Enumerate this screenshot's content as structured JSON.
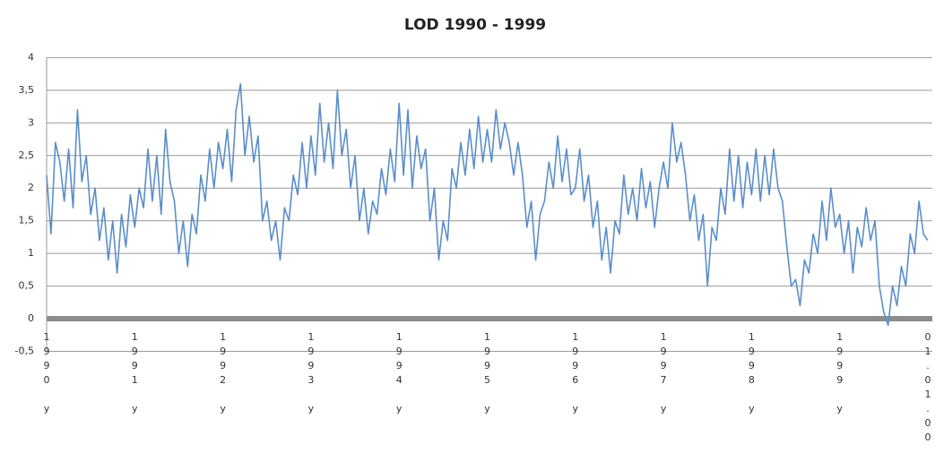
{
  "chart_data": {
    "type": "line",
    "title": "LOD 1990 - 1999",
    "categories": [
      "1990 y",
      null,
      null,
      null,
      null,
      null,
      null,
      null,
      null,
      null,
      null,
      null,
      null,
      null,
      null,
      null,
      null,
      null,
      null,
      null,
      "1991 y",
      null,
      null,
      null,
      null,
      null,
      null,
      null,
      null,
      null,
      null,
      null,
      null,
      null,
      null,
      null,
      null,
      null,
      null,
      null,
      "1992 y",
      null,
      null,
      null,
      null,
      null,
      null,
      null,
      null,
      null,
      null,
      null,
      null,
      null,
      null,
      null,
      null,
      null,
      null,
      null,
      "1993 y",
      null,
      null,
      null,
      null,
      null,
      null,
      null,
      null,
      null,
      null,
      null,
      null,
      null,
      null,
      null,
      null,
      null,
      null,
      null,
      "1994 y",
      null,
      null,
      null,
      null,
      null,
      null,
      null,
      null,
      null,
      null,
      null,
      null,
      null,
      null,
      null,
      null,
      null,
      null,
      null,
      "1995 y",
      null,
      null,
      null,
      null,
      null,
      null,
      null,
      null,
      null,
      null,
      null,
      null,
      null,
      null,
      null,
      null,
      null,
      null,
      null,
      "1996 y",
      null,
      null,
      null,
      null,
      null,
      null,
      null,
      null,
      null,
      null,
      null,
      null,
      null,
      null,
      null,
      null,
      null,
      null,
      null,
      "1997 y",
      null,
      null,
      null,
      null,
      null,
      null,
      null,
      null,
      null,
      null,
      null,
      null,
      null,
      null,
      null,
      null,
      null,
      null,
      null,
      "1998 y",
      null,
      null,
      null,
      null,
      null,
      null,
      null,
      null,
      null,
      null,
      null,
      null,
      null,
      null,
      null,
      null,
      null,
      null,
      null,
      "1999 y",
      null,
      null,
      null,
      null,
      null,
      null,
      null,
      null,
      null,
      null,
      null,
      null,
      null,
      null,
      null,
      null,
      null,
      null,
      null,
      "01.01.00"
    ],
    "values": [
      2.2,
      1.3,
      2.7,
      2.4,
      1.8,
      2.6,
      1.7,
      3.2,
      2.1,
      2.5,
      1.6,
      2.0,
      1.2,
      1.7,
      0.9,
      1.5,
      0.7,
      1.6,
      1.1,
      1.9,
      1.4,
      2.0,
      1.7,
      2.6,
      1.8,
      2.5,
      1.6,
      2.9,
      2.1,
      1.8,
      1.0,
      1.5,
      0.8,
      1.6,
      1.3,
      2.2,
      1.8,
      2.6,
      2.0,
      2.7,
      2.3,
      2.9,
      2.1,
      3.2,
      3.6,
      2.5,
      3.1,
      2.4,
      2.8,
      1.5,
      1.8,
      1.2,
      1.5,
      0.9,
      1.7,
      1.5,
      2.2,
      1.9,
      2.7,
      2.0,
      2.8,
      2.2,
      3.3,
      2.4,
      3.0,
      2.3,
      3.5,
      2.5,
      2.9,
      2.0,
      2.5,
      1.5,
      2.0,
      1.3,
      1.8,
      1.6,
      2.3,
      1.9,
      2.6,
      2.1,
      3.3,
      2.2,
      3.2,
      2.0,
      2.8,
      2.3,
      2.6,
      1.5,
      2.0,
      0.9,
      1.5,
      1.2,
      2.3,
      2.0,
      2.7,
      2.2,
      2.9,
      2.3,
      3.1,
      2.4,
      2.9,
      2.4,
      3.2,
      2.6,
      3.0,
      2.7,
      2.2,
      2.7,
      2.2,
      1.4,
      1.8,
      0.9,
      1.6,
      1.8,
      2.4,
      2.0,
      2.8,
      2.1,
      2.6,
      1.9,
      2.0,
      2.6,
      1.8,
      2.2,
      1.4,
      1.8,
      0.9,
      1.4,
      0.7,
      1.5,
      1.3,
      2.2,
      1.6,
      2.0,
      1.5,
      2.3,
      1.7,
      2.1,
      1.4,
      2.0,
      2.4,
      2.0,
      3.0,
      2.4,
      2.7,
      2.2,
      1.5,
      1.9,
      1.2,
      1.6,
      0.5,
      1.4,
      1.2,
      2.0,
      1.6,
      2.6,
      1.8,
      2.5,
      1.7,
      2.4,
      1.9,
      2.6,
      1.8,
      2.5,
      1.9,
      2.6,
      2.0,
      1.8,
      1.1,
      0.5,
      0.6,
      0.2,
      0.9,
      0.7,
      1.3,
      1.0,
      1.8,
      1.2,
      2.0,
      1.4,
      1.6,
      1.0,
      1.5,
      0.7,
      1.4,
      1.1,
      1.7,
      1.2,
      1.5,
      0.5,
      0.1,
      -0.1,
      0.5,
      0.2,
      0.8,
      0.5,
      1.3,
      1.0,
      1.8,
      1.3,
      1.2
    ],
    "color": "#5b8ec9",
    "ylim": [
      -0.5,
      4
    ],
    "yticks": [
      {
        "value": -0.5,
        "label": "-0,5"
      },
      0,
      {
        "value": 0.5,
        "label": "0,5"
      },
      1,
      {
        "value": 1.5,
        "label": "1,5"
      },
      2,
      {
        "value": 2.5,
        "label": "2,5"
      },
      3,
      {
        "value": 3.5,
        "label": "3,5"
      },
      4
    ],
    "grid": true
  }
}
